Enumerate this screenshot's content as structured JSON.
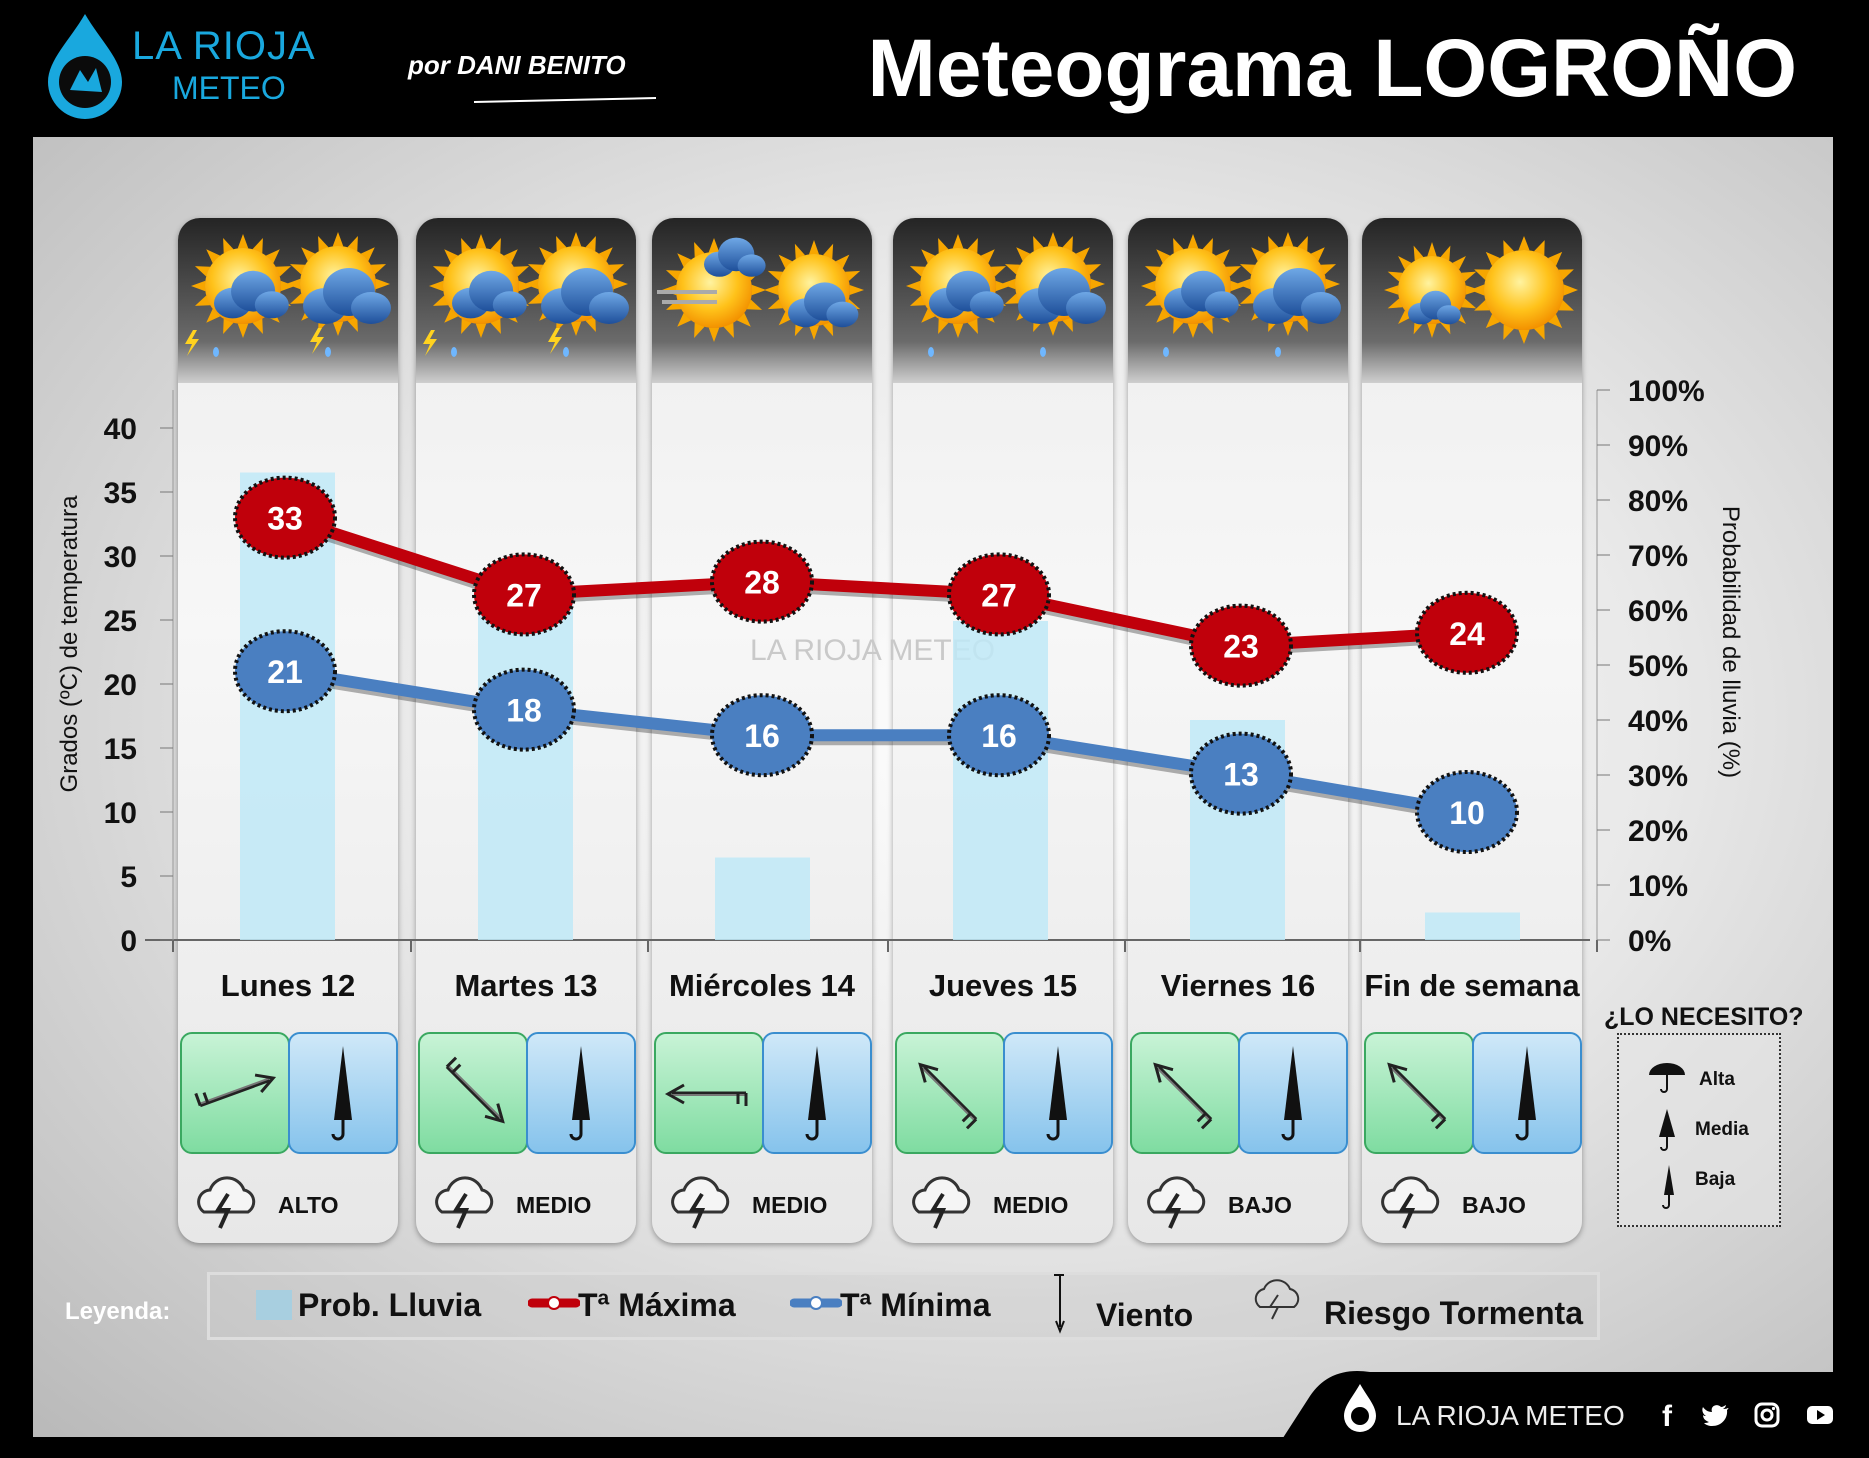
{
  "header": {
    "brand_line1": "LA RIOJA",
    "brand_line2": "METEO",
    "author": "por DANI BENITO",
    "title": "Meteograma LOGROÑO"
  },
  "watermark": "LA RIOJA METEO",
  "chart_data": {
    "type": "line",
    "categories": [
      "Lunes 12",
      "Martes 13",
      "Miércoles 14",
      "Jueves 15",
      "Viernes 16",
      "Fin de semana"
    ],
    "series": [
      {
        "name": "Tª Máxima",
        "values": [
          33,
          27,
          28,
          27,
          23,
          24
        ],
        "color": "#c0000b"
      },
      {
        "name": "Tª Mínima",
        "values": [
          21,
          18,
          16,
          16,
          13,
          10
        ],
        "color": "#4a7fc1"
      },
      {
        "name": "Prob. Lluvia",
        "values": [
          85,
          62,
          15,
          58,
          40,
          5
        ],
        "color": "#bfe9f7"
      }
    ],
    "ylabel": "Grados (ºC) de temperatura",
    "ylim": [
      0,
      40
    ],
    "yticks": [
      "0",
      "5",
      "10",
      "15",
      "20",
      "25",
      "30",
      "35",
      "40"
    ],
    "y2label": "Probabilidad de lluvia (%)",
    "y2lim": [
      0,
      100
    ],
    "y2ticks": [
      "0%",
      "10%",
      "20%",
      "30%",
      "40%",
      "50%",
      "60%",
      "70%",
      "80%",
      "90%",
      "100%"
    ]
  },
  "days": [
    {
      "label": "Lunes 12",
      "risk": "ALTO",
      "wind_dir": 250,
      "umbrella": "Baja"
    },
    {
      "label": "Martes 13",
      "risk": "MEDIO",
      "wind_dir": 315,
      "umbrella": "Baja"
    },
    {
      "label": "Miércoles 14",
      "risk": "MEDIO",
      "wind_dir": 90,
      "umbrella": "Baja"
    },
    {
      "label": "Jueves 15",
      "risk": "MEDIO",
      "wind_dir": 135,
      "umbrella": "Baja"
    },
    {
      "label": "Viernes 16",
      "risk": "BAJO",
      "wind_dir": 135,
      "umbrella": "Baja"
    },
    {
      "label": "Fin de semana",
      "risk": "BAJO",
      "wind_dir": 135,
      "umbrella": "Baja"
    }
  ],
  "umbrella_key": {
    "title": "¿LO NECESITO?",
    "items": [
      "Alta",
      "Media",
      "Baja"
    ]
  },
  "legend": {
    "label": "Leyenda:",
    "rain": "Prob. Lluvia",
    "max": "Tª Máxima",
    "min": "Tª Mínima",
    "wind": "Viento",
    "storm": "Riesgo Tormenta"
  },
  "footer": {
    "text": "LA RIOJA METEO",
    "social": [
      "facebook-icon",
      "twitter-icon",
      "instagram-icon",
      "youtube-icon"
    ]
  }
}
